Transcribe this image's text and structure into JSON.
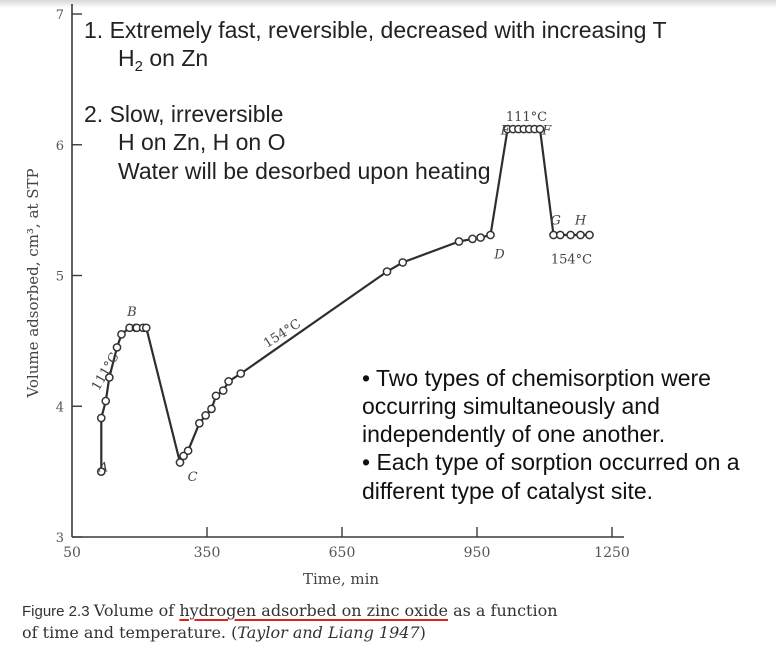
{
  "annotations": {
    "note1_line1": "1. Extremely fast, reversible, decreased with increasing T",
    "note1_line2_base": "H",
    "note1_line2_sub": "2",
    "note1_line2_rest": " on Zn",
    "note2_line1": "2. Slow, irreversible",
    "note2_line2": "H on Zn, H on O",
    "note2_line3": "Water will be desorbed upon heating",
    "bullet1_line1": "• Two types of chemisorption were",
    "bullet1_line2": "occurring simultaneously and",
    "bullet1_line3": "independently of one another.",
    "bullet2_line1": "• Each type of sorption occurred on a",
    "bullet2_line2": "different type of catalyst site."
  },
  "caption": {
    "figure_label": "Figure 2.3",
    "text_before": "Volume of ",
    "text_underlined": "hydrogen adsorbed on zinc oxide",
    "text_after": " as a function",
    "line2_before": "of time and temperature. (",
    "line2_italic": "Taylor and Liang 1947",
    "line2_after": ")"
  },
  "chart_data": {
    "type": "scatter",
    "xlabel": "Time, min",
    "ylabel": "Volume adsorbed, cm³, at STP",
    "xlim": [
      50,
      1250
    ],
    "ylim": [
      3,
      7
    ],
    "x_ticks": [
      50,
      350,
      650,
      950,
      1250
    ],
    "y_ticks": [
      3,
      4,
      5,
      6,
      7
    ],
    "point_labels": [
      {
        "text": "A",
        "x": 120,
        "y": 3.5
      },
      {
        "text": "B",
        "x": 183,
        "y": 4.69
      },
      {
        "text": "C",
        "x": 318,
        "y": 3.43
      },
      {
        "text": "D",
        "x": 1000,
        "y": 5.13
      },
      {
        "text": "E",
        "x": 1013,
        "y": 6.08
      },
      {
        "text": "F",
        "x": 1105,
        "y": 6.08
      },
      {
        "text": "G",
        "x": 1125,
        "y": 5.39
      },
      {
        "text": "H",
        "x": 1180,
        "y": 5.39
      }
    ],
    "temperature_labels": [
      {
        "text": "111°C",
        "x": 132,
        "y": 4.25,
        "rotation": -60
      },
      {
        "text": "154°C",
        "x": 522,
        "y": 4.53,
        "rotation": -33
      },
      {
        "text": "111°C",
        "x": 1060,
        "y": 6.18,
        "rotation": 0
      },
      {
        "text": "154°C",
        "x": 1160,
        "y": 5.09,
        "rotation": 0
      }
    ],
    "series": [
      {
        "values": [
          {
            "x": 115,
            "y": 3.5
          },
          {
            "x": 115,
            "y": 3.91
          },
          {
            "x": 125,
            "y": 4.04
          },
          {
            "x": 133,
            "y": 4.22
          },
          {
            "x": 150,
            "y": 4.45
          },
          {
            "x": 160,
            "y": 4.55
          },
          {
            "x": 178,
            "y": 4.6
          },
          {
            "x": 192,
            "y": 4.6
          },
          {
            "x": 194,
            "y": 4.6
          },
          {
            "x": 208,
            "y": 4.6
          },
          {
            "x": 215,
            "y": 4.6
          },
          {
            "x": 290,
            "y": 3.57
          },
          {
            "x": 298,
            "y": 3.62
          },
          {
            "x": 308,
            "y": 3.66
          },
          {
            "x": 333,
            "y": 3.87
          },
          {
            "x": 347,
            "y": 3.93
          },
          {
            "x": 360,
            "y": 3.98
          },
          {
            "x": 370,
            "y": 4.08
          },
          {
            "x": 386,
            "y": 4.12
          },
          {
            "x": 398,
            "y": 4.19
          },
          {
            "x": 425,
            "y": 4.25
          },
          {
            "x": 750,
            "y": 5.03
          },
          {
            "x": 785,
            "y": 5.1
          },
          {
            "x": 910,
            "y": 5.26
          },
          {
            "x": 940,
            "y": 5.28
          },
          {
            "x": 958,
            "y": 5.29
          },
          {
            "x": 980,
            "y": 5.31
          },
          {
            "x": 1018,
            "y": 6.12
          },
          {
            "x": 1030,
            "y": 6.12
          },
          {
            "x": 1042,
            "y": 6.12
          },
          {
            "x": 1054,
            "y": 6.12
          },
          {
            "x": 1066,
            "y": 6.12
          },
          {
            "x": 1078,
            "y": 6.12
          },
          {
            "x": 1090,
            "y": 6.12
          },
          {
            "x": 1120,
            "y": 5.31
          },
          {
            "x": 1135,
            "y": 5.31
          },
          {
            "x": 1158,
            "y": 5.31
          },
          {
            "x": 1180,
            "y": 5.31
          },
          {
            "x": 1200,
            "y": 5.31
          }
        ]
      }
    ],
    "grid": false
  }
}
